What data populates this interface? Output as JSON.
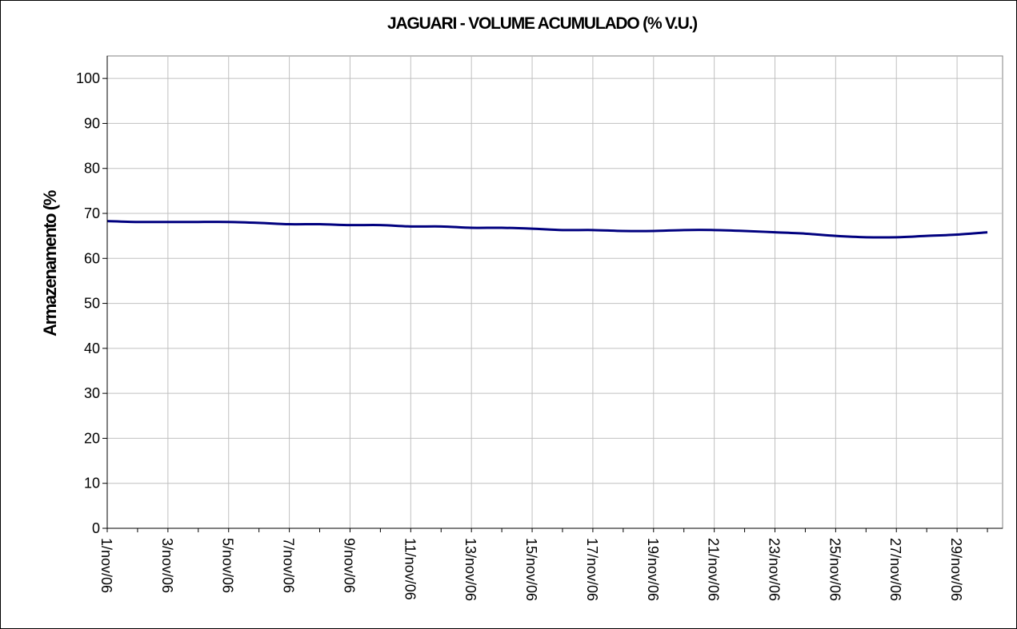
{
  "chart_data": {
    "type": "line",
    "title": "JAGUARI - VOLUME ACUMULADO (% V.U.)",
    "ylabel": "Armazenamento (%",
    "xlabel": "",
    "ylim": [
      0,
      105
    ],
    "yticks": [
      0,
      10,
      20,
      30,
      40,
      50,
      60,
      70,
      80,
      90,
      100
    ],
    "grid": true,
    "legend": "none",
    "line_color": "#00007F",
    "x": [
      "1/nov/06",
      "2/nov/06",
      "3/nov/06",
      "4/nov/06",
      "5/nov/06",
      "6/nov/06",
      "7/nov/06",
      "8/nov/06",
      "9/nov/06",
      "10/nov/06",
      "11/nov/06",
      "12/nov/06",
      "13/nov/06",
      "14/nov/06",
      "15/nov/06",
      "16/nov/06",
      "17/nov/06",
      "18/nov/06",
      "19/nov/06",
      "20/nov/06",
      "21/nov/06",
      "22/nov/06",
      "23/nov/06",
      "24/nov/06",
      "25/nov/06",
      "26/nov/06",
      "27/nov/06",
      "28/nov/06",
      "29/nov/06",
      "30/nov/06"
    ],
    "xticks": [
      "1/nov/06",
      "3/nov/06",
      "5/nov/06",
      "7/nov/06",
      "9/nov/06",
      "11/nov/06",
      "13/nov/06",
      "15/nov/06",
      "17/nov/06",
      "19/nov/06",
      "21/nov/06",
      "23/nov/06",
      "25/nov/06",
      "27/nov/06",
      "29/nov/06"
    ],
    "series": [
      {
        "values": [
          68.3,
          68.1,
          68.1,
          68.1,
          68.1,
          67.9,
          67.6,
          67.6,
          67.4,
          67.4,
          67.1,
          67.1,
          66.8,
          66.8,
          66.6,
          66.3,
          66.3,
          66.1,
          66.1,
          66.3,
          66.3,
          66.1,
          65.8,
          65.5,
          65.0,
          64.7,
          64.7,
          65.0,
          65.3,
          65.8
        ]
      }
    ]
  }
}
